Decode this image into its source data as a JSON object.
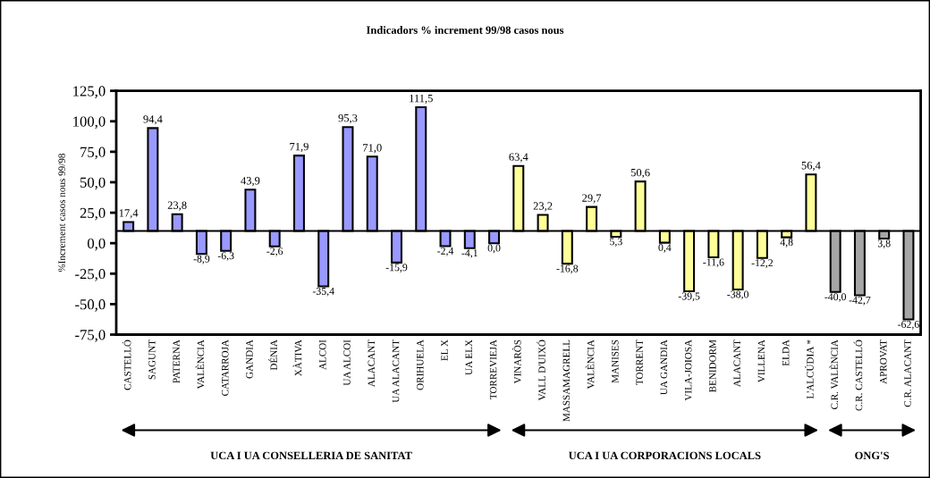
{
  "chart_data": {
    "type": "bar",
    "title": "Indicadors % increment 99/98 casos nous",
    "ylabel": "%Increment casos nous 99/98",
    "categories": [
      "CASTELLÓ",
      "SAGUNT",
      "PATERNA",
      "VALÈNCIA",
      "CATARROJA",
      "GANDIA",
      "DÉNIA",
      "XÀTIVA",
      "ALCOI",
      "UA ALCOI",
      "ALACANT",
      "UA ALACANT",
      "ORIHUELA",
      "EL X",
      "UA ELX",
      "TORREVIEJA",
      "VINARÒS",
      "VALL D'UIXÓ",
      "MASSAMAGRELL",
      "VALÈNCIA",
      "MANISES",
      "TORRENT",
      "UA GANDIA",
      "VILA-JOIOSA",
      "BENIDORM",
      "ALACANT",
      "VILLENA",
      "ELDA",
      "L'ALCÚDIA *",
      "C.R. VALÈNCIA",
      "C.R. CASTELLÓ",
      "APROVAT",
      "C.R. ALACANT"
    ],
    "base": [
      10,
      10,
      10,
      10,
      10,
      10,
      10,
      10,
      10,
      10,
      10,
      10,
      10,
      10,
      10,
      10,
      10,
      10,
      10,
      10,
      10,
      10,
      10,
      10,
      10,
      10,
      10,
      10,
      10,
      10,
      10,
      10,
      10
    ],
    "values": [
      7.4,
      84.4,
      13.8,
      -18.9,
      -16.3,
      33.9,
      -12.6,
      61.9,
      -45.4,
      85.3,
      61.0,
      -25.9,
      101.5,
      -12.4,
      -14.1,
      -10.0,
      53.4,
      13.2,
      -26.8,
      19.7,
      -4.7,
      40.6,
      -9.6,
      -49.5,
      -21.6,
      -48.0,
      -22.2,
      -5.2,
      46.4,
      -50.0,
      -52.7,
      -6.2,
      -72.6
    ],
    "value_labels": [
      "17,4",
      "94,4",
      "23,8",
      "-8,9",
      "-6,3",
      "43,9",
      "-2,6",
      "71,9",
      "-35,4",
      "95,3",
      "71,0",
      "-15,9",
      "111,5",
      "-2,4",
      "-4,1",
      "0,0",
      "63,4",
      "23,2",
      "-16,8",
      "29,7",
      "5,3",
      "50,6",
      "0,4",
      "-39,5",
      "-11,6",
      "-38,0",
      "-12,2",
      "4,8",
      "56,4",
      "-40,0",
      "-42,7",
      "3,8",
      "-62,6"
    ],
    "colors": [
      "#9999ff",
      "#9999ff",
      "#9999ff",
      "#9999ff",
      "#9999ff",
      "#9999ff",
      "#9999ff",
      "#9999ff",
      "#9999ff",
      "#9999ff",
      "#9999ff",
      "#9999ff",
      "#9999ff",
      "#9999ff",
      "#9999ff",
      "#9999ff",
      "#ffff99",
      "#ffff99",
      "#ffff99",
      "#ffff99",
      "#ffff99",
      "#ffff99",
      "#ffff99",
      "#ffff99",
      "#ffff99",
      "#ffff99",
      "#ffff99",
      "#ffff99",
      "#ffff99",
      "#a6a6a6",
      "#a6a6a6",
      "#a6a6a6",
      "#a6a6a6"
    ],
    "ylim": [
      -75,
      125
    ],
    "yticks": [
      {
        "value": -75,
        "label": "-75,0"
      },
      {
        "value": -50,
        "label": "-50,0"
      },
      {
        "value": -25,
        "label": "-25,0"
      },
      {
        "value": 0,
        "label": "0,0"
      },
      {
        "value": 25,
        "label": "25,0"
      },
      {
        "value": 50,
        "label": "50,0"
      },
      {
        "value": 75,
        "label": "75,0"
      },
      {
        "value": 100,
        "label": "100,0"
      },
      {
        "value": 125,
        "label": "125,0"
      }
    ],
    "ref_lines": [
      {
        "axis": "y",
        "value": 10,
        "color": "#000000"
      }
    ],
    "annotations": [
      "UCA I UA CONSELLERIA DE SANITAT",
      "UCA I UA CORPORACIONS LOCALS",
      "ONG'S"
    ],
    "grid": false,
    "legend": false
  }
}
